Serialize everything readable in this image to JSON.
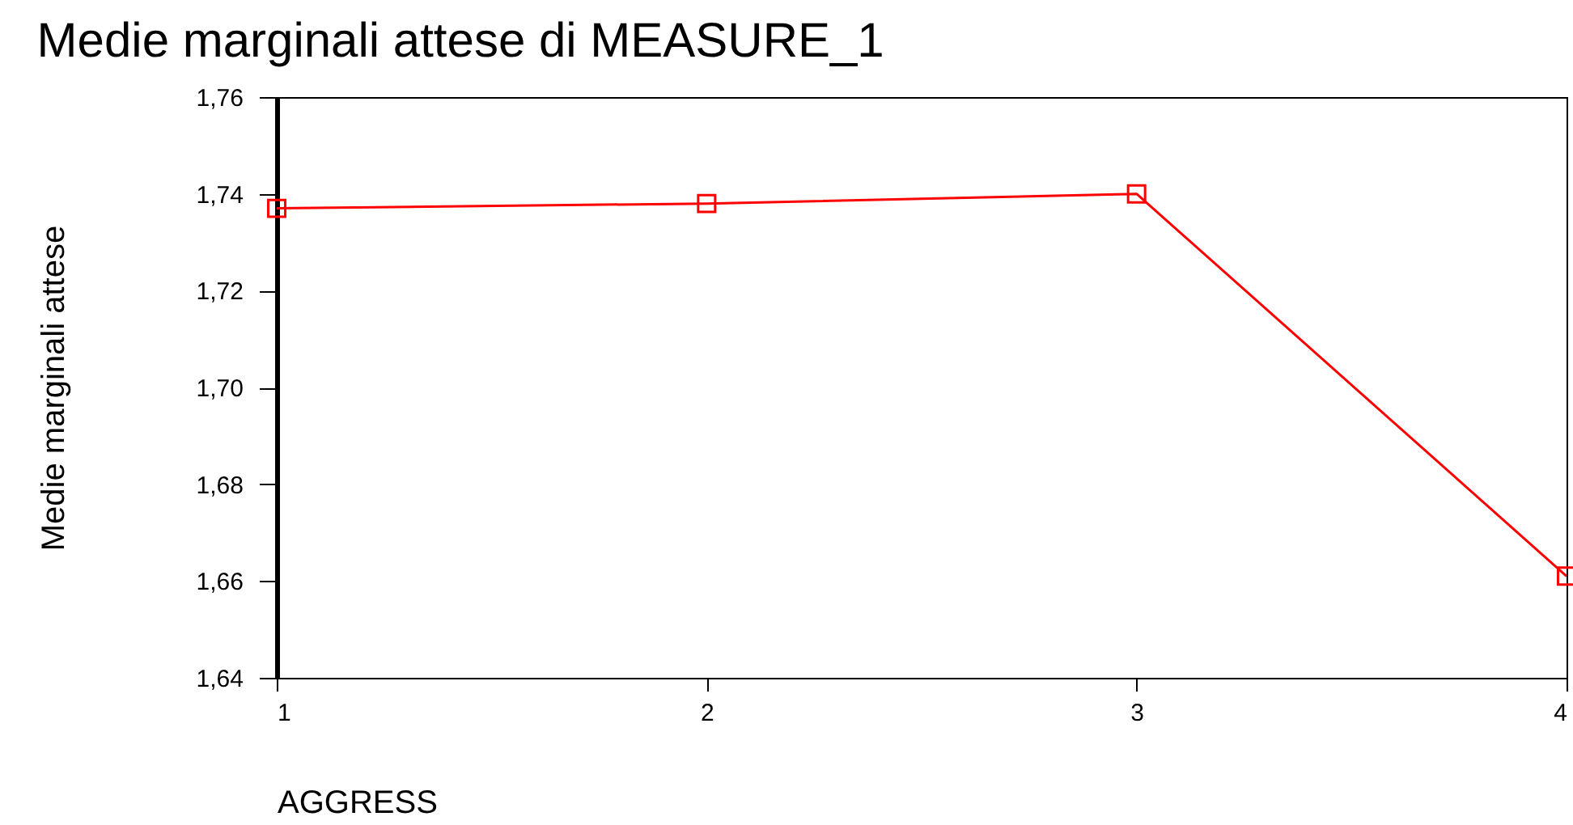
{
  "chart_data": {
    "type": "line",
    "title": "Medie marginali attese di MEASURE_1",
    "xlabel": "AGGRESS",
    "ylabel": "Medie marginali attese",
    "x": [
      1,
      2,
      3,
      4
    ],
    "series": [
      {
        "color": "#ff0000",
        "values": [
          1.737,
          1.738,
          1.74,
          1.661
        ]
      }
    ],
    "xlim": [
      1,
      4
    ],
    "xticks": [
      1,
      2,
      3,
      4
    ],
    "ylim": [
      1.64,
      1.76
    ],
    "yticks": [
      {
        "value": 1.64,
        "label": "1,64"
      },
      {
        "value": 1.66,
        "label": "1,66"
      },
      {
        "value": 1.68,
        "label": "1,68"
      },
      {
        "value": 1.7,
        "label": "1,70"
      },
      {
        "value": 1.72,
        "label": "1,72"
      },
      {
        "value": 1.74,
        "label": "1,74"
      },
      {
        "value": 1.76,
        "label": "1,76"
      }
    ],
    "marker": "square"
  }
}
